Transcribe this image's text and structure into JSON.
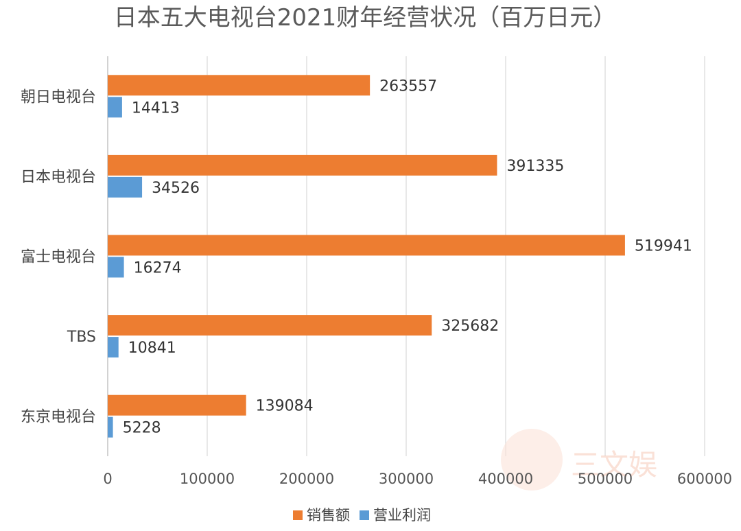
{
  "chart_data": {
    "type": "bar",
    "orientation": "horizontal",
    "title": "日本五大电视台2021财年经营状况（百万日元）",
    "categories": [
      "朝日电视台",
      "日本电视台",
      "富士电视台",
      "TBS",
      "东京电视台"
    ],
    "series": [
      {
        "name": "销售额",
        "color": "#ED7D31",
        "values": [
          263557,
          391335,
          519941,
          325682,
          139084
        ]
      },
      {
        "name": "营业利润",
        "color": "#5B9BD5",
        "values": [
          14413,
          34526,
          16274,
          10841,
          5228
        ]
      }
    ],
    "xlim": [
      0,
      600000
    ],
    "xticks": [
      0,
      100000,
      200000,
      300000,
      400000,
      500000,
      600000
    ],
    "grid": true,
    "legend_position": "bottom",
    "data_labels": true
  },
  "watermark": {
    "text": "三文娱"
  }
}
